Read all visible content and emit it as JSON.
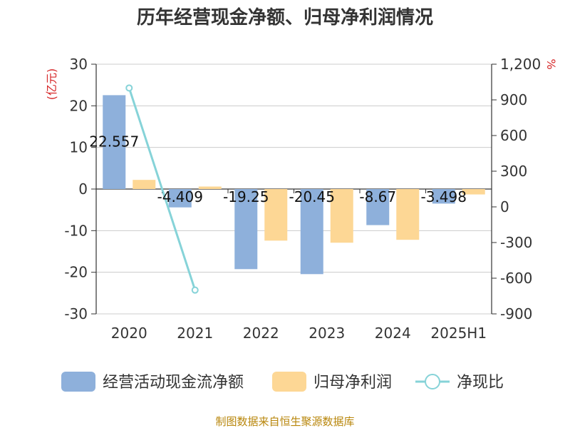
{
  "chart_data": {
    "type": "bar",
    "title": "历年经营现金净额、归母净利润情况",
    "left_unit": "(亿元)",
    "right_unit": "%",
    "categories": [
      "2020",
      "2021",
      "2022",
      "2023",
      "2024",
      "2025H1"
    ],
    "ylim_left": [
      -30,
      30
    ],
    "left_ticks": [
      "30",
      "20",
      "10",
      "0",
      "-10",
      "-20",
      "-30"
    ],
    "ylim_right": [
      -900,
      1200
    ],
    "right_ticks": [
      "1,200",
      "900",
      "600",
      "300",
      "0",
      "-300",
      "-600",
      "-900"
    ],
    "series": [
      {
        "name": "经营活动现金流净额",
        "kind": "bar",
        "axis": "left",
        "color": "#8eb0db",
        "values": [
          22.557,
          -4.409,
          -19.25,
          -20.45,
          -8.67,
          -3.498
        ],
        "labels": [
          "22.557",
          "-4.409",
          "-19.25",
          "-20.45",
          "-8.67",
          "-3.498"
        ]
      },
      {
        "name": "归母净利润",
        "kind": "bar",
        "axis": "left",
        "color": "#fdd795",
        "values": [
          2.2,
          0.6,
          -12.4,
          -12.9,
          -12.2,
          -1.3
        ]
      },
      {
        "name": "净现比",
        "kind": "line",
        "axis": "right",
        "color": "#86d3d8",
        "values": [
          1000,
          -700,
          null,
          null,
          null,
          null
        ]
      }
    ],
    "grid": true,
    "legend_position": "bottom"
  },
  "source": "制图数据来自恒生聚源数据库"
}
